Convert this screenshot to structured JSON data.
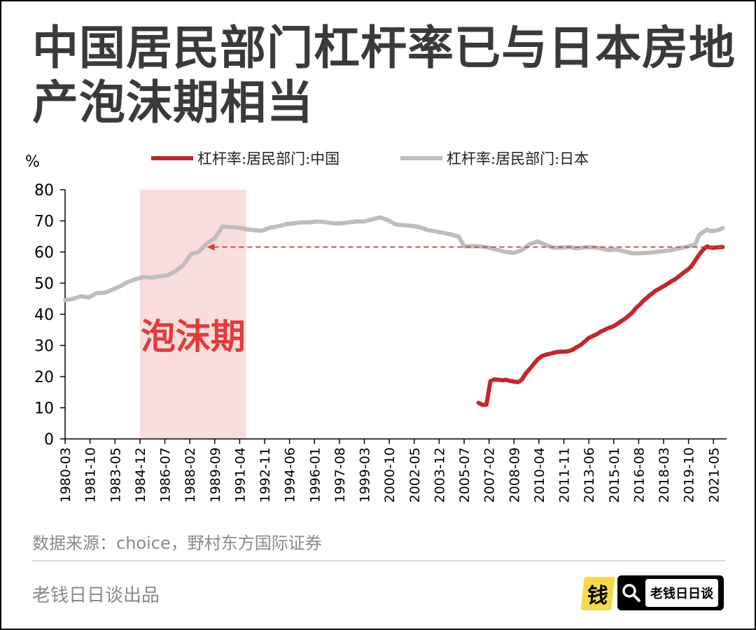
{
  "title": {
    "line1": "中国居民部门杠杆率已与日本房地",
    "line2": "产泡沫期相当"
  },
  "chart_data": {
    "type": "line",
    "unit_label": "%",
    "ylim": [
      0,
      80
    ],
    "yticks": [
      0,
      10,
      20,
      30,
      40,
      50,
      60,
      70,
      80
    ],
    "xlim": [
      "1980-03",
      "2022-03"
    ],
    "xticks": [
      "1980-03",
      "1981-10",
      "1983-05",
      "1984-12",
      "1986-07",
      "1988-02",
      "1989-09",
      "1991-04",
      "1992-11",
      "1994-06",
      "1996-01",
      "1997-08",
      "1999-03",
      "2000-10",
      "2002-05",
      "2003-12",
      "2005-07",
      "2007-02",
      "2008-09",
      "2010-04",
      "2011-11",
      "2013-06",
      "2015-01",
      "2016-08",
      "2018-03",
      "2019-10",
      "2021-05"
    ],
    "grid": false,
    "legend_position": "top",
    "series": [
      {
        "name": "杠杆率:居民部门:中国",
        "color": "#c0282b",
        "points": [
          [
            "2006-06",
            11.6
          ],
          [
            "2006-09",
            10.9
          ],
          [
            "2006-12",
            11.0
          ],
          [
            "2007-03",
            18.5
          ],
          [
            "2007-06",
            19.1
          ],
          [
            "2007-09",
            19.0
          ],
          [
            "2007-12",
            18.8
          ],
          [
            "2008-03",
            19.0
          ],
          [
            "2008-06",
            18.6
          ],
          [
            "2008-09",
            18.4
          ],
          [
            "2008-12",
            18.2
          ],
          [
            "2009-03",
            19.0
          ],
          [
            "2009-06",
            21.0
          ],
          [
            "2009-09",
            22.5
          ],
          [
            "2009-12",
            24.0
          ],
          [
            "2010-03",
            25.5
          ],
          [
            "2010-06",
            26.5
          ],
          [
            "2010-09",
            27.0
          ],
          [
            "2010-12",
            27.3
          ],
          [
            "2011-03",
            27.6
          ],
          [
            "2011-06",
            27.9
          ],
          [
            "2011-09",
            28.0
          ],
          [
            "2011-12",
            28.0
          ],
          [
            "2012-03",
            28.2
          ],
          [
            "2012-06",
            28.7
          ],
          [
            "2012-09",
            29.5
          ],
          [
            "2012-12",
            30.2
          ],
          [
            "2013-03",
            31.3
          ],
          [
            "2013-06",
            32.4
          ],
          [
            "2013-09",
            33.0
          ],
          [
            "2013-12",
            33.6
          ],
          [
            "2014-03",
            34.4
          ],
          [
            "2014-06",
            35.0
          ],
          [
            "2014-09",
            35.6
          ],
          [
            "2014-12",
            36.0
          ],
          [
            "2015-03",
            36.7
          ],
          [
            "2015-06",
            37.6
          ],
          [
            "2015-09",
            38.4
          ],
          [
            "2015-12",
            39.4
          ],
          [
            "2016-03",
            40.5
          ],
          [
            "2016-06",
            42.0
          ],
          [
            "2016-09",
            43.2
          ],
          [
            "2016-12",
            44.5
          ],
          [
            "2017-03",
            45.6
          ],
          [
            "2017-06",
            46.6
          ],
          [
            "2017-09",
            47.6
          ],
          [
            "2017-12",
            48.3
          ],
          [
            "2018-03",
            49.0
          ],
          [
            "2018-06",
            49.8
          ],
          [
            "2018-09",
            50.6
          ],
          [
            "2018-12",
            51.3
          ],
          [
            "2019-03",
            52.3
          ],
          [
            "2019-06",
            53.3
          ],
          [
            "2019-09",
            54.2
          ],
          [
            "2019-12",
            55.3
          ],
          [
            "2020-03",
            57.2
          ],
          [
            "2020-06",
            59.1
          ],
          [
            "2020-09",
            60.7
          ],
          [
            "2020-12",
            61.8
          ],
          [
            "2021-03",
            61.4
          ],
          [
            "2021-06",
            61.4
          ],
          [
            "2021-09",
            61.5
          ],
          [
            "2021-12",
            61.6
          ]
        ]
      },
      {
        "name": "杠杆率:居民部门:日本",
        "color": "#bdbdbd",
        "points": [
          [
            "1980-03",
            44.5
          ],
          [
            "1980-09",
            45.0
          ],
          [
            "1981-03",
            45.8
          ],
          [
            "1981-09",
            45.4
          ],
          [
            "1982-03",
            46.8
          ],
          [
            "1982-09",
            46.9
          ],
          [
            "1983-03",
            47.9
          ],
          [
            "1983-09",
            49.0
          ],
          [
            "1984-03",
            50.4
          ],
          [
            "1984-09",
            51.3
          ],
          [
            "1985-03",
            52.0
          ],
          [
            "1985-09",
            51.7
          ],
          [
            "1986-03",
            52.2
          ],
          [
            "1986-09",
            52.5
          ],
          [
            "1987-03",
            53.8
          ],
          [
            "1987-09",
            55.8
          ],
          [
            "1988-03",
            59.3
          ],
          [
            "1988-09",
            60.1
          ],
          [
            "1989-03",
            62.8
          ],
          [
            "1989-09",
            64.4
          ],
          [
            "1990-03",
            68.2
          ],
          [
            "1990-09",
            68.0
          ],
          [
            "1991-03",
            67.8
          ],
          [
            "1991-09",
            67.3
          ],
          [
            "1992-03",
            67.0
          ],
          [
            "1992-09",
            66.8
          ],
          [
            "1993-03",
            67.8
          ],
          [
            "1993-09",
            68.2
          ],
          [
            "1994-03",
            68.9
          ],
          [
            "1994-09",
            69.2
          ],
          [
            "1995-03",
            69.5
          ],
          [
            "1995-09",
            69.5
          ],
          [
            "1996-03",
            69.8
          ],
          [
            "1996-09",
            69.6
          ],
          [
            "1997-03",
            69.2
          ],
          [
            "1997-09",
            69.2
          ],
          [
            "1998-03",
            69.5
          ],
          [
            "1998-09",
            69.8
          ],
          [
            "1999-03",
            69.8
          ],
          [
            "1999-09",
            70.5
          ],
          [
            "2000-03",
            71.1
          ],
          [
            "2000-09",
            70.2
          ],
          [
            "2001-03",
            68.8
          ],
          [
            "2001-09",
            68.6
          ],
          [
            "2002-03",
            68.4
          ],
          [
            "2002-09",
            68.0
          ],
          [
            "2003-03",
            67.1
          ],
          [
            "2003-09",
            66.6
          ],
          [
            "2004-03",
            66.2
          ],
          [
            "2004-09",
            65.6
          ],
          [
            "2005-03",
            64.9
          ],
          [
            "2005-07",
            61.8
          ],
          [
            "2006-03",
            61.9
          ],
          [
            "2006-09",
            61.7
          ],
          [
            "2007-03",
            61.3
          ],
          [
            "2007-09",
            60.6
          ],
          [
            "2008-03",
            60.0
          ],
          [
            "2008-09",
            59.7
          ],
          [
            "2009-03",
            60.6
          ],
          [
            "2009-09",
            62.5
          ],
          [
            "2010-03",
            63.4
          ],
          [
            "2010-09",
            62.3
          ],
          [
            "2011-03",
            61.4
          ],
          [
            "2011-09",
            61.4
          ],
          [
            "2012-03",
            61.6
          ],
          [
            "2012-09",
            61.2
          ],
          [
            "2013-03",
            61.5
          ],
          [
            "2013-09",
            61.5
          ],
          [
            "2014-03",
            61.2
          ],
          [
            "2014-09",
            60.6
          ],
          [
            "2015-03",
            60.8
          ],
          [
            "2015-09",
            60.2
          ],
          [
            "2016-03",
            59.6
          ],
          [
            "2016-09",
            59.6
          ],
          [
            "2017-03",
            59.7
          ],
          [
            "2017-09",
            60.0
          ],
          [
            "2018-03",
            60.3
          ],
          [
            "2018-09",
            60.6
          ],
          [
            "2019-03",
            61.2
          ],
          [
            "2019-09",
            61.7
          ],
          [
            "2020-03",
            62.4
          ],
          [
            "2020-06",
            65.4
          ],
          [
            "2020-09",
            66.4
          ],
          [
            "2020-12",
            67.2
          ],
          [
            "2021-03",
            66.7
          ],
          [
            "2021-06",
            66.8
          ],
          [
            "2021-09",
            67.1
          ],
          [
            "2021-12",
            67.7
          ]
        ]
      }
    ],
    "annotations": {
      "bubble_band": {
        "label": "泡沫期",
        "x_from": "1984-12",
        "x_to": "1991-09",
        "color": "#f9dcdc",
        "label_color": "#e03c3c"
      },
      "reference_arrow": {
        "y": 61.6,
        "x_from": "2021-12",
        "x_to": "1989-03",
        "color": "#e03c3c",
        "style": "dashed"
      }
    }
  },
  "source_text": "数据来源：choice，野村东方国际证券",
  "footer_text": "老钱日日谈出品",
  "brand": {
    "mark_char": "钱",
    "label": "老钱日日谈",
    "search_icon": "search-icon"
  }
}
